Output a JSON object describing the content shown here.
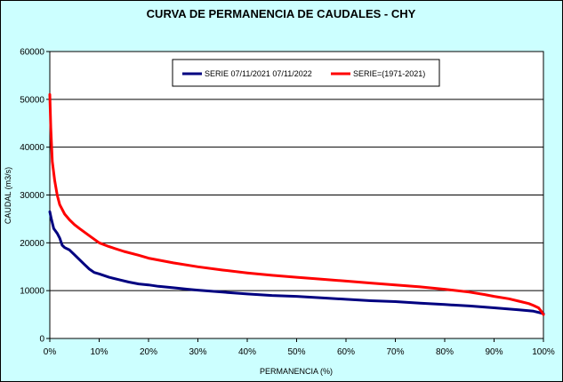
{
  "chart_data": {
    "type": "line",
    "title": "CURVA DE PERMANENCIA DE CAUDALES - CHY",
    "xlabel": "PERMANENCIA (%)",
    "ylabel": "CAUDAL (m3/s)",
    "xlim": [
      0,
      100
    ],
    "ylim": [
      0,
      60000
    ],
    "x_ticks": [
      "0%",
      "10%",
      "20%",
      "30%",
      "40%",
      "50%",
      "60%",
      "70%",
      "80%",
      "90%",
      "100%"
    ],
    "y_ticks": [
      "0",
      "10000",
      "20000",
      "30000",
      "40000",
      "50000",
      "60000"
    ],
    "grid": "horizontal",
    "legend_position": "top",
    "series": [
      {
        "name": "SERIE 07/11/2021 07/11/2022",
        "color": "#000080",
        "x": [
          0,
          0.3,
          0.8,
          1.5,
          2,
          2.5,
          3,
          4,
          5,
          6,
          7,
          8,
          9,
          10,
          12,
          14,
          16,
          18,
          20,
          22,
          25,
          28,
          30,
          35,
          40,
          45,
          50,
          55,
          60,
          65,
          70,
          75,
          80,
          85,
          90,
          95,
          98,
          100
        ],
        "y": [
          26500,
          25000,
          23000,
          22000,
          21000,
          19500,
          19000,
          18500,
          17500,
          16500,
          15500,
          14500,
          13800,
          13500,
          12800,
          12300,
          11800,
          11400,
          11200,
          10900,
          10600,
          10300,
          10100,
          9700,
          9300,
          9000,
          8800,
          8500,
          8200,
          7900,
          7700,
          7400,
          7100,
          6800,
          6400,
          6000,
          5700,
          5200
        ]
      },
      {
        "name": "SERIE=(1971-2021)",
        "color": "#ff0000",
        "x": [
          0,
          0.2,
          0.5,
          1,
          1.5,
          2,
          3,
          4,
          5,
          6,
          8,
          10,
          12,
          15,
          18,
          20,
          25,
          30,
          35,
          40,
          45,
          50,
          55,
          60,
          65,
          70,
          75,
          80,
          85,
          88,
          90,
          93,
          95,
          97,
          98,
          99,
          99.5,
          100
        ],
        "y": [
          51000,
          44000,
          37000,
          33000,
          30000,
          28000,
          26000,
          24800,
          23800,
          23000,
          21500,
          20000,
          19200,
          18200,
          17400,
          16800,
          15800,
          15000,
          14300,
          13700,
          13200,
          12800,
          12400,
          12000,
          11600,
          11200,
          10800,
          10300,
          9700,
          9200,
          8800,
          8300,
          7800,
          7300,
          6900,
          6400,
          5800,
          5000
        ]
      }
    ]
  }
}
